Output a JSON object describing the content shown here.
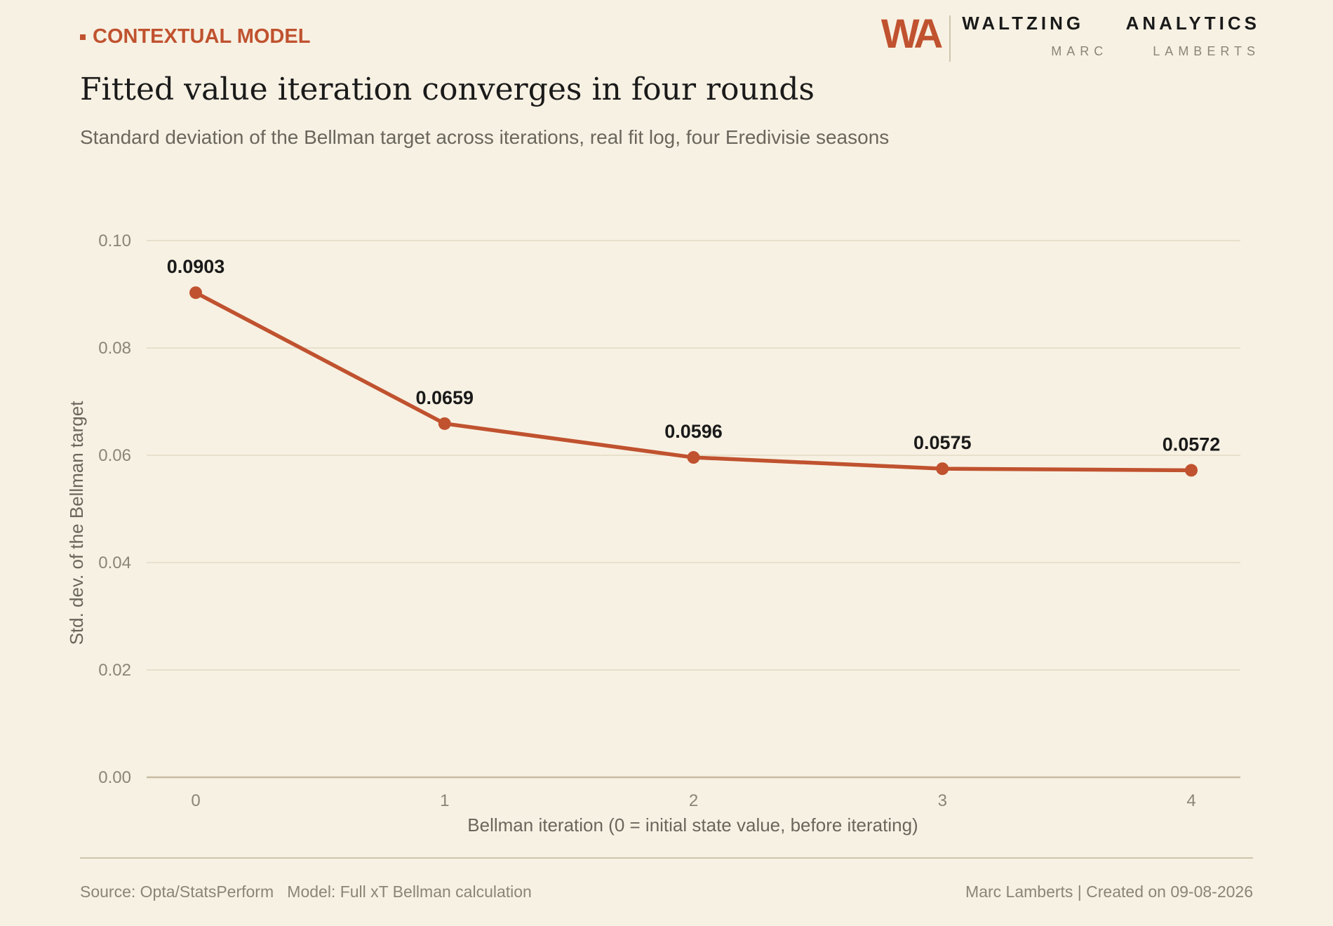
{
  "header": {
    "tag": "CONTEXTUAL MODEL",
    "title": "Fitted value iteration converges in four rounds",
    "subtitle": "Standard deviation of the Bellman target across iterations, real fit log, four Eredivisie seasons"
  },
  "brand": {
    "logo": "WA",
    "name": "WALTZING  ANALYTICS",
    "author": "MARC  LAMBERTS"
  },
  "colors": {
    "background": "#f7f1e3",
    "accent": "#c0522f",
    "grid": "#e3dac5",
    "axis": "#c7bba2",
    "tick_text": "#8a8576",
    "label_text": "#6a665c",
    "data_label": "#1a1a1a"
  },
  "chart_data": {
    "type": "line",
    "title": "Fitted value iteration converges in four rounds",
    "x": [
      0,
      1,
      2,
      3,
      4
    ],
    "x_tick_labels": [
      "0",
      "1",
      "2",
      "3",
      "4"
    ],
    "series": [
      {
        "values": [
          0.0903,
          0.0659,
          0.0596,
          0.0575,
          0.0572
        ]
      }
    ],
    "data_labels": [
      "0.0903",
      "0.0659",
      "0.0596",
      "0.0575",
      "0.0572"
    ],
    "xlabel": "Bellman iteration (0 = initial state value, before iterating)",
    "ylabel": "Std. dev. of the Bellman target",
    "ylim": [
      0,
      0.1
    ],
    "y_ticks": [
      0,
      0.02,
      0.04,
      0.06,
      0.08,
      0.1
    ],
    "y_tick_labels": [
      "0.00",
      "0.02",
      "0.04",
      "0.06",
      "0.08",
      "0.10"
    ],
    "grid": true,
    "legend": "none"
  },
  "footer": {
    "source": "Source: Opta/StatsPerform   Model: Full xT Bellman calculation",
    "credit": "Marc Lamberts | Created on 09-08-2026"
  }
}
